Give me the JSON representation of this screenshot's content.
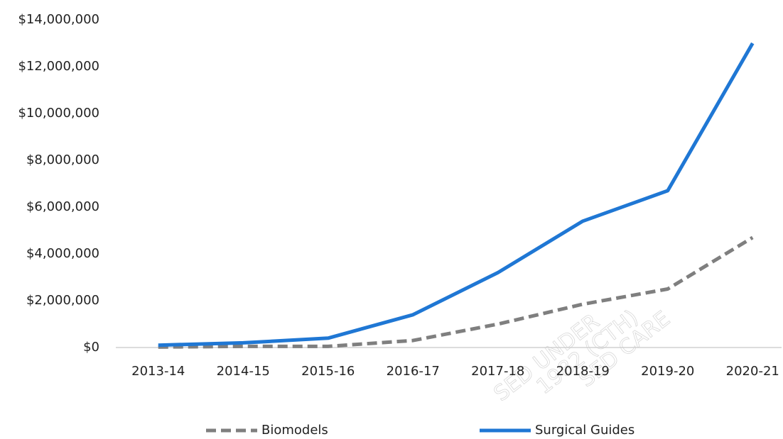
{
  "chart_data": {
    "type": "line",
    "categories": [
      "2013-14",
      "2014-15",
      "2015-16",
      "2016-17",
      "2017-18",
      "2018-19",
      "2019-20",
      "2020-21"
    ],
    "series": [
      {
        "name": "Biomodels",
        "color": "#7f7f7f",
        "dashed": true,
        "values": [
          20000,
          50000,
          50000,
          300000,
          1000000,
          1850000,
          2500000,
          4700000
        ]
      },
      {
        "name": "Surgical Guides",
        "color": "#1f77d4",
        "dashed": false,
        "values": [
          100000,
          200000,
          400000,
          1400000,
          3200000,
          5400000,
          6700000,
          13000000
        ]
      }
    ],
    "ylim": [
      0,
      14000000
    ],
    "yticks": [
      {
        "value": 0,
        "label": "$0"
      },
      {
        "value": 2000000,
        "label": "$2,000,000"
      },
      {
        "value": 4000000,
        "label": "$4,000,000"
      },
      {
        "value": 6000000,
        "label": "$6,000,000"
      },
      {
        "value": 8000000,
        "label": "$8,000,000"
      },
      {
        "value": 10000000,
        "label": "$10,000,000"
      },
      {
        "value": 12000000,
        "label": "$12,000,000"
      },
      {
        "value": 14000000,
        "label": "$14,000,000"
      }
    ],
    "grid": false,
    "legend": "bottom",
    "watermark": [
      "SED UNDER",
      "1982 (CTH)",
      "SED CARE"
    ]
  }
}
